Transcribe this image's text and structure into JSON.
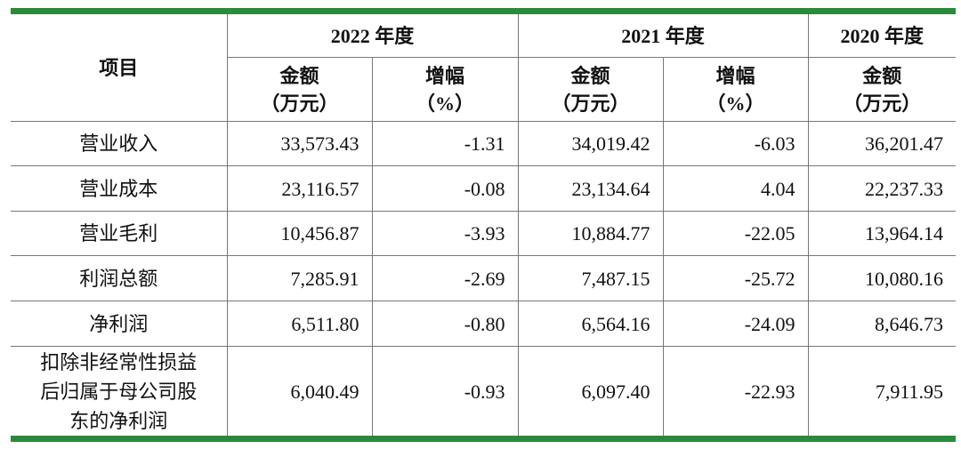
{
  "header": {
    "item": "项目",
    "years": [
      "2022 年度",
      "2021 年度",
      "2020 年度"
    ],
    "subheaders": [
      "金额\n（万元）",
      "增幅\n（%）",
      "金额\n（万元）",
      "增幅\n（%）",
      "金额\n（万元）"
    ]
  },
  "rows": [
    {
      "label": "营业收入",
      "cells": [
        "33,573.43",
        "-1.31",
        "34,019.42",
        "-6.03",
        "36,201.47"
      ]
    },
    {
      "label": "营业成本",
      "cells": [
        "23,116.57",
        "-0.08",
        "23,134.64",
        "4.04",
        "22,237.33"
      ]
    },
    {
      "label": "营业毛利",
      "cells": [
        "10,456.87",
        "-3.93",
        "10,884.77",
        "-22.05",
        "13,964.14"
      ]
    },
    {
      "label": "利润总额",
      "cells": [
        "7,285.91",
        "-2.69",
        "7,487.15",
        "-25.72",
        "10,080.16"
      ]
    },
    {
      "label": "净利润",
      "cells": [
        "6,511.80",
        "-0.80",
        "6,564.16",
        "-24.09",
        "8,646.73"
      ]
    },
    {
      "label": "扣除非经常性损益后归属于母公司股东的净利润",
      "cells": [
        "6,040.49",
        "-0.93",
        "6,097.40",
        "-22.93",
        "7,911.95"
      ]
    }
  ]
}
